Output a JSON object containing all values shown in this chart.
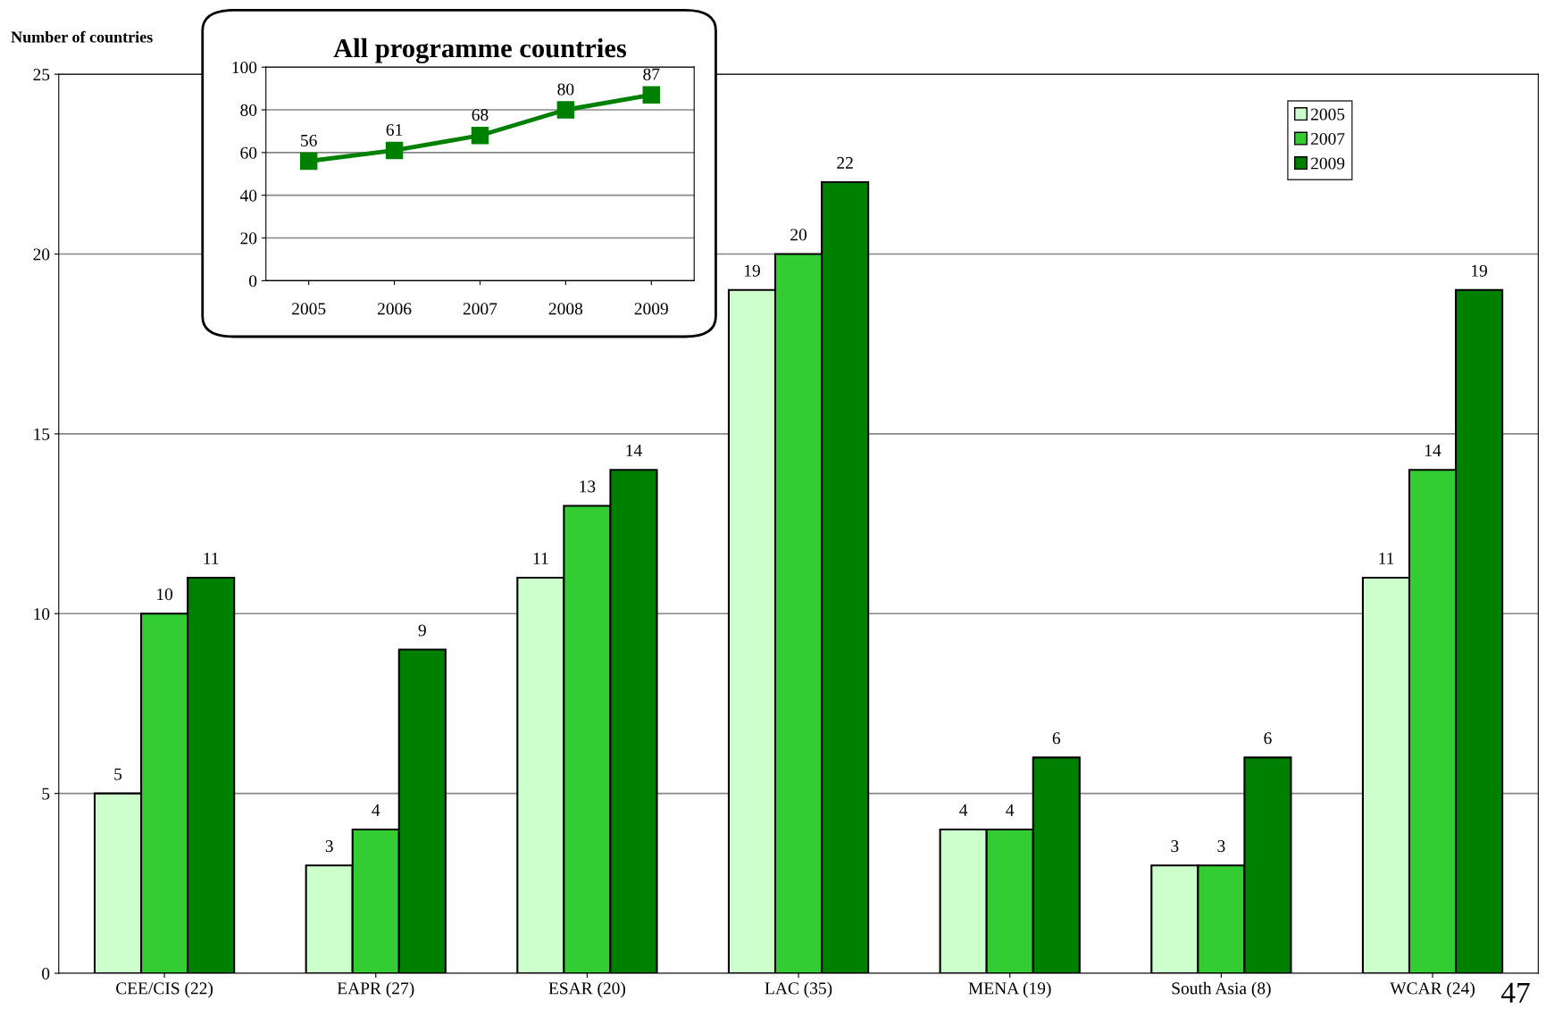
{
  "chart_data": [
    {
      "type": "bar",
      "ylabel": "Number of countries",
      "categories": [
        "CEE/CIS (22)",
        "EAPR (27)",
        "ESAR (20)",
        "LAC (35)",
        "MENA (19)",
        "South Asia (8)",
        "WCAR (24)"
      ],
      "series": [
        {
          "name": "2005",
          "color": "#ccffcc",
          "values": [
            5,
            3,
            11,
            19,
            4,
            3,
            11
          ]
        },
        {
          "name": "2007",
          "color": "#33cc33",
          "values": [
            10,
            4,
            13,
            20,
            4,
            3,
            14
          ]
        },
        {
          "name": "2009",
          "color": "#008000",
          "values": [
            11,
            9,
            14,
            22,
            6,
            6,
            19
          ]
        }
      ],
      "ylim": [
        0,
        25
      ],
      "yticks": [
        0,
        5,
        10,
        15,
        20,
        25
      ],
      "grid": "y",
      "legend": "top right",
      "data_labels": true,
      "annotations": [
        "47"
      ]
    },
    {
      "type": "line",
      "title": "All programme countries",
      "x": [
        2005,
        2006,
        2007,
        2008,
        2009
      ],
      "xlim": [
        2004.5,
        2009.5
      ],
      "xticks": [
        2005,
        2006,
        2007,
        2008,
        2009
      ],
      "series": [
        {
          "color": "#008000",
          "values": [
            56,
            61,
            68,
            80,
            87
          ]
        }
      ],
      "ylim": [
        0,
        100
      ],
      "yticks": [
        0,
        20,
        40,
        60,
        80,
        100
      ],
      "grid": "y",
      "marker": "square",
      "data_labels": true
    }
  ]
}
